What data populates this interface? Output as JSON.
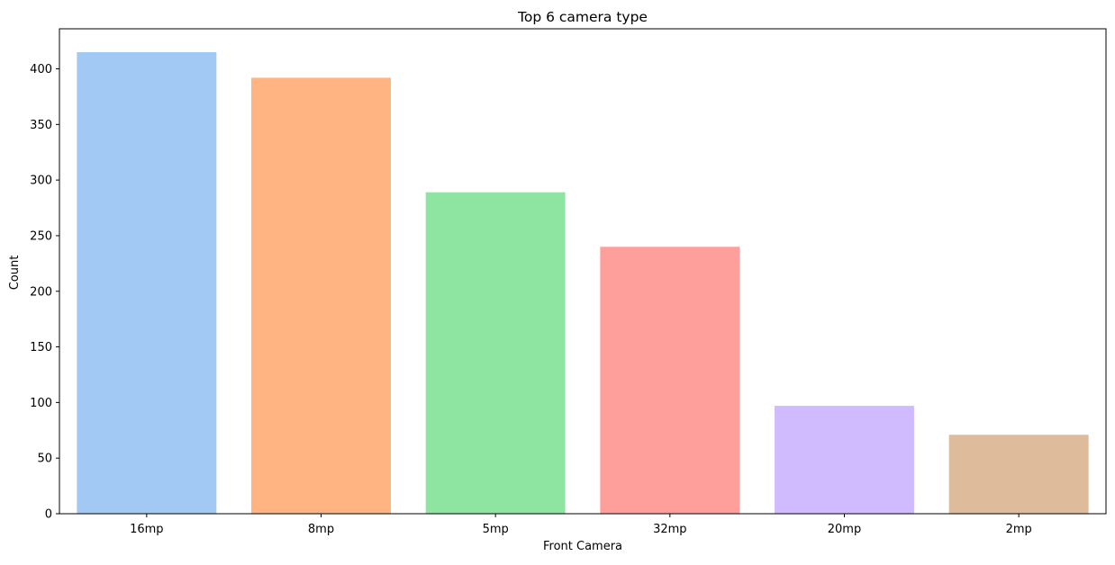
{
  "chart_data": {
    "type": "bar",
    "title": "Top 6 camera type",
    "xlabel": "Front Camera",
    "ylabel": "Count",
    "categories": [
      "16mp",
      "8mp",
      "5mp",
      "32mp",
      "20mp",
      "2mp"
    ],
    "values": [
      415,
      392,
      289,
      240,
      97,
      71
    ],
    "colors": [
      "#a1c9f4",
      "#ffb482",
      "#8de5a1",
      "#ff9f9b",
      "#d0bbff",
      "#debb9b"
    ],
    "ylim": [
      0,
      436
    ],
    "yticks": [
      0,
      50,
      100,
      150,
      200,
      250,
      300,
      350,
      400
    ],
    "ytick_labels": [
      "0",
      "50",
      "100",
      "150",
      "200",
      "250",
      "300",
      "350",
      "400"
    ],
    "grid": false,
    "legend": "none"
  }
}
